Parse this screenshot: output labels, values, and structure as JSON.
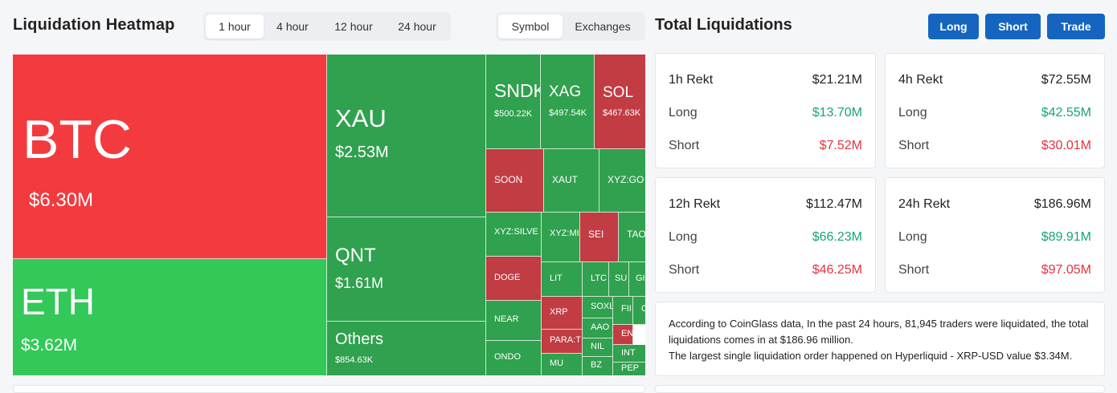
{
  "header": {
    "title": "Liquidation Heatmap",
    "time_tabs": [
      {
        "label": "1 hour",
        "active": true
      },
      {
        "label": "4 hour",
        "active": false
      },
      {
        "label": "12 hour",
        "active": false
      },
      {
        "label": "24 hour",
        "active": false
      }
    ],
    "view_tabs": [
      {
        "label": "Symbol",
        "active": true
      },
      {
        "label": "Exchanges",
        "active": false
      }
    ]
  },
  "total": {
    "title": "Total Liquidations",
    "buttons": [
      "Long",
      "Short",
      "Trade"
    ]
  },
  "heatmap": [
    {
      "symbol": "BTC",
      "value": "$6.30M",
      "color": "#f23a3f"
    },
    {
      "symbol": "ETH",
      "value": "$3.62M",
      "color": "#33c858"
    },
    {
      "symbol": "XAU",
      "value": "$2.53M",
      "color": "#30a14e"
    },
    {
      "symbol": "QNT",
      "value": "$1.61M",
      "color": "#30a14e"
    },
    {
      "symbol": "Others",
      "value": "$854.63K",
      "color": "#30a14e"
    },
    {
      "symbol": "SNDK",
      "value": "$500.22K",
      "color": "#30a14e"
    },
    {
      "symbol": "XAG",
      "value": "$497.54K",
      "color": "#30a14e"
    },
    {
      "symbol": "SOL",
      "value": "$467.63K",
      "color": "#c13c43"
    },
    {
      "symbol": "SOON",
      "value": "",
      "color": "#c13c43"
    },
    {
      "symbol": "XAUT",
      "value": "",
      "color": "#30a14e"
    },
    {
      "symbol": "XYZ:GO",
      "value": "",
      "color": "#30a14e"
    },
    {
      "symbol": "XYZ:SILVE",
      "value": "",
      "color": "#30a14e"
    },
    {
      "symbol": "XYZ:MI",
      "value": "",
      "color": "#30a14e"
    },
    {
      "symbol": "SEI",
      "value": "",
      "color": "#c13c43"
    },
    {
      "symbol": "TAO",
      "value": "",
      "color": "#30a14e"
    },
    {
      "symbol": "DOGE",
      "value": "",
      "color": "#c13c43"
    },
    {
      "symbol": "LIT",
      "value": "",
      "color": "#30a14e"
    },
    {
      "symbol": "LTC",
      "value": "",
      "color": "#30a14e"
    },
    {
      "symbol": "SU",
      "value": "",
      "color": "#30a14e"
    },
    {
      "symbol": "GI",
      "value": "",
      "color": "#30a14e"
    },
    {
      "symbol": "NEAR",
      "value": "",
      "color": "#30a14e"
    },
    {
      "symbol": "XRP",
      "value": "",
      "color": "#c13c43"
    },
    {
      "symbol": "SOXL",
      "value": "",
      "color": "#30a14e"
    },
    {
      "symbol": "FII",
      "value": "",
      "color": "#30a14e"
    },
    {
      "symbol": "O",
      "value": "",
      "color": "#30a14e"
    },
    {
      "symbol": "AAO",
      "value": "",
      "color": "#30a14e"
    },
    {
      "symbol": "ENA",
      "value": "",
      "color": "#c13c43"
    },
    {
      "symbol": "PARA:T",
      "value": "",
      "color": "#c13c43"
    },
    {
      "symbol": "NIL",
      "value": "",
      "color": "#30a14e"
    },
    {
      "symbol": "INT",
      "value": "",
      "color": "#30a14e"
    },
    {
      "symbol": "ONDO",
      "value": "",
      "color": "#30a14e"
    },
    {
      "symbol": "MU",
      "value": "",
      "color": "#30a14e"
    },
    {
      "symbol": "BZ",
      "value": "",
      "color": "#30a14e"
    },
    {
      "symbol": "PEP",
      "value": "",
      "color": "#30a14e"
    }
  ],
  "cards": [
    {
      "title": "1h Rekt",
      "total": "$21.21M",
      "long_label": "Long",
      "long": "$13.70M",
      "short_label": "Short",
      "short": "$7.52M"
    },
    {
      "title": "4h Rekt",
      "total": "$72.55M",
      "long_label": "Long",
      "long": "$42.55M",
      "short_label": "Short",
      "short": "$30.01M"
    },
    {
      "title": "12h Rekt",
      "total": "$112.47M",
      "long_label": "Long",
      "long": "$66.23M",
      "short_label": "Short",
      "short": "$46.25M"
    },
    {
      "title": "24h Rekt",
      "total": "$186.96M",
      "long_label": "Long",
      "long": "$89.91M",
      "short_label": "Short",
      "short": "$97.05M"
    }
  ],
  "summary": {
    "line1": "According to CoinGlass data, In the past 24 hours, 81,945 traders were liquidated, the total liquidations comes in at $186.96 million.",
    "line2": "The largest single liquidation order happened on Hyperliquid - XRP-USD value $3.34M."
  }
}
